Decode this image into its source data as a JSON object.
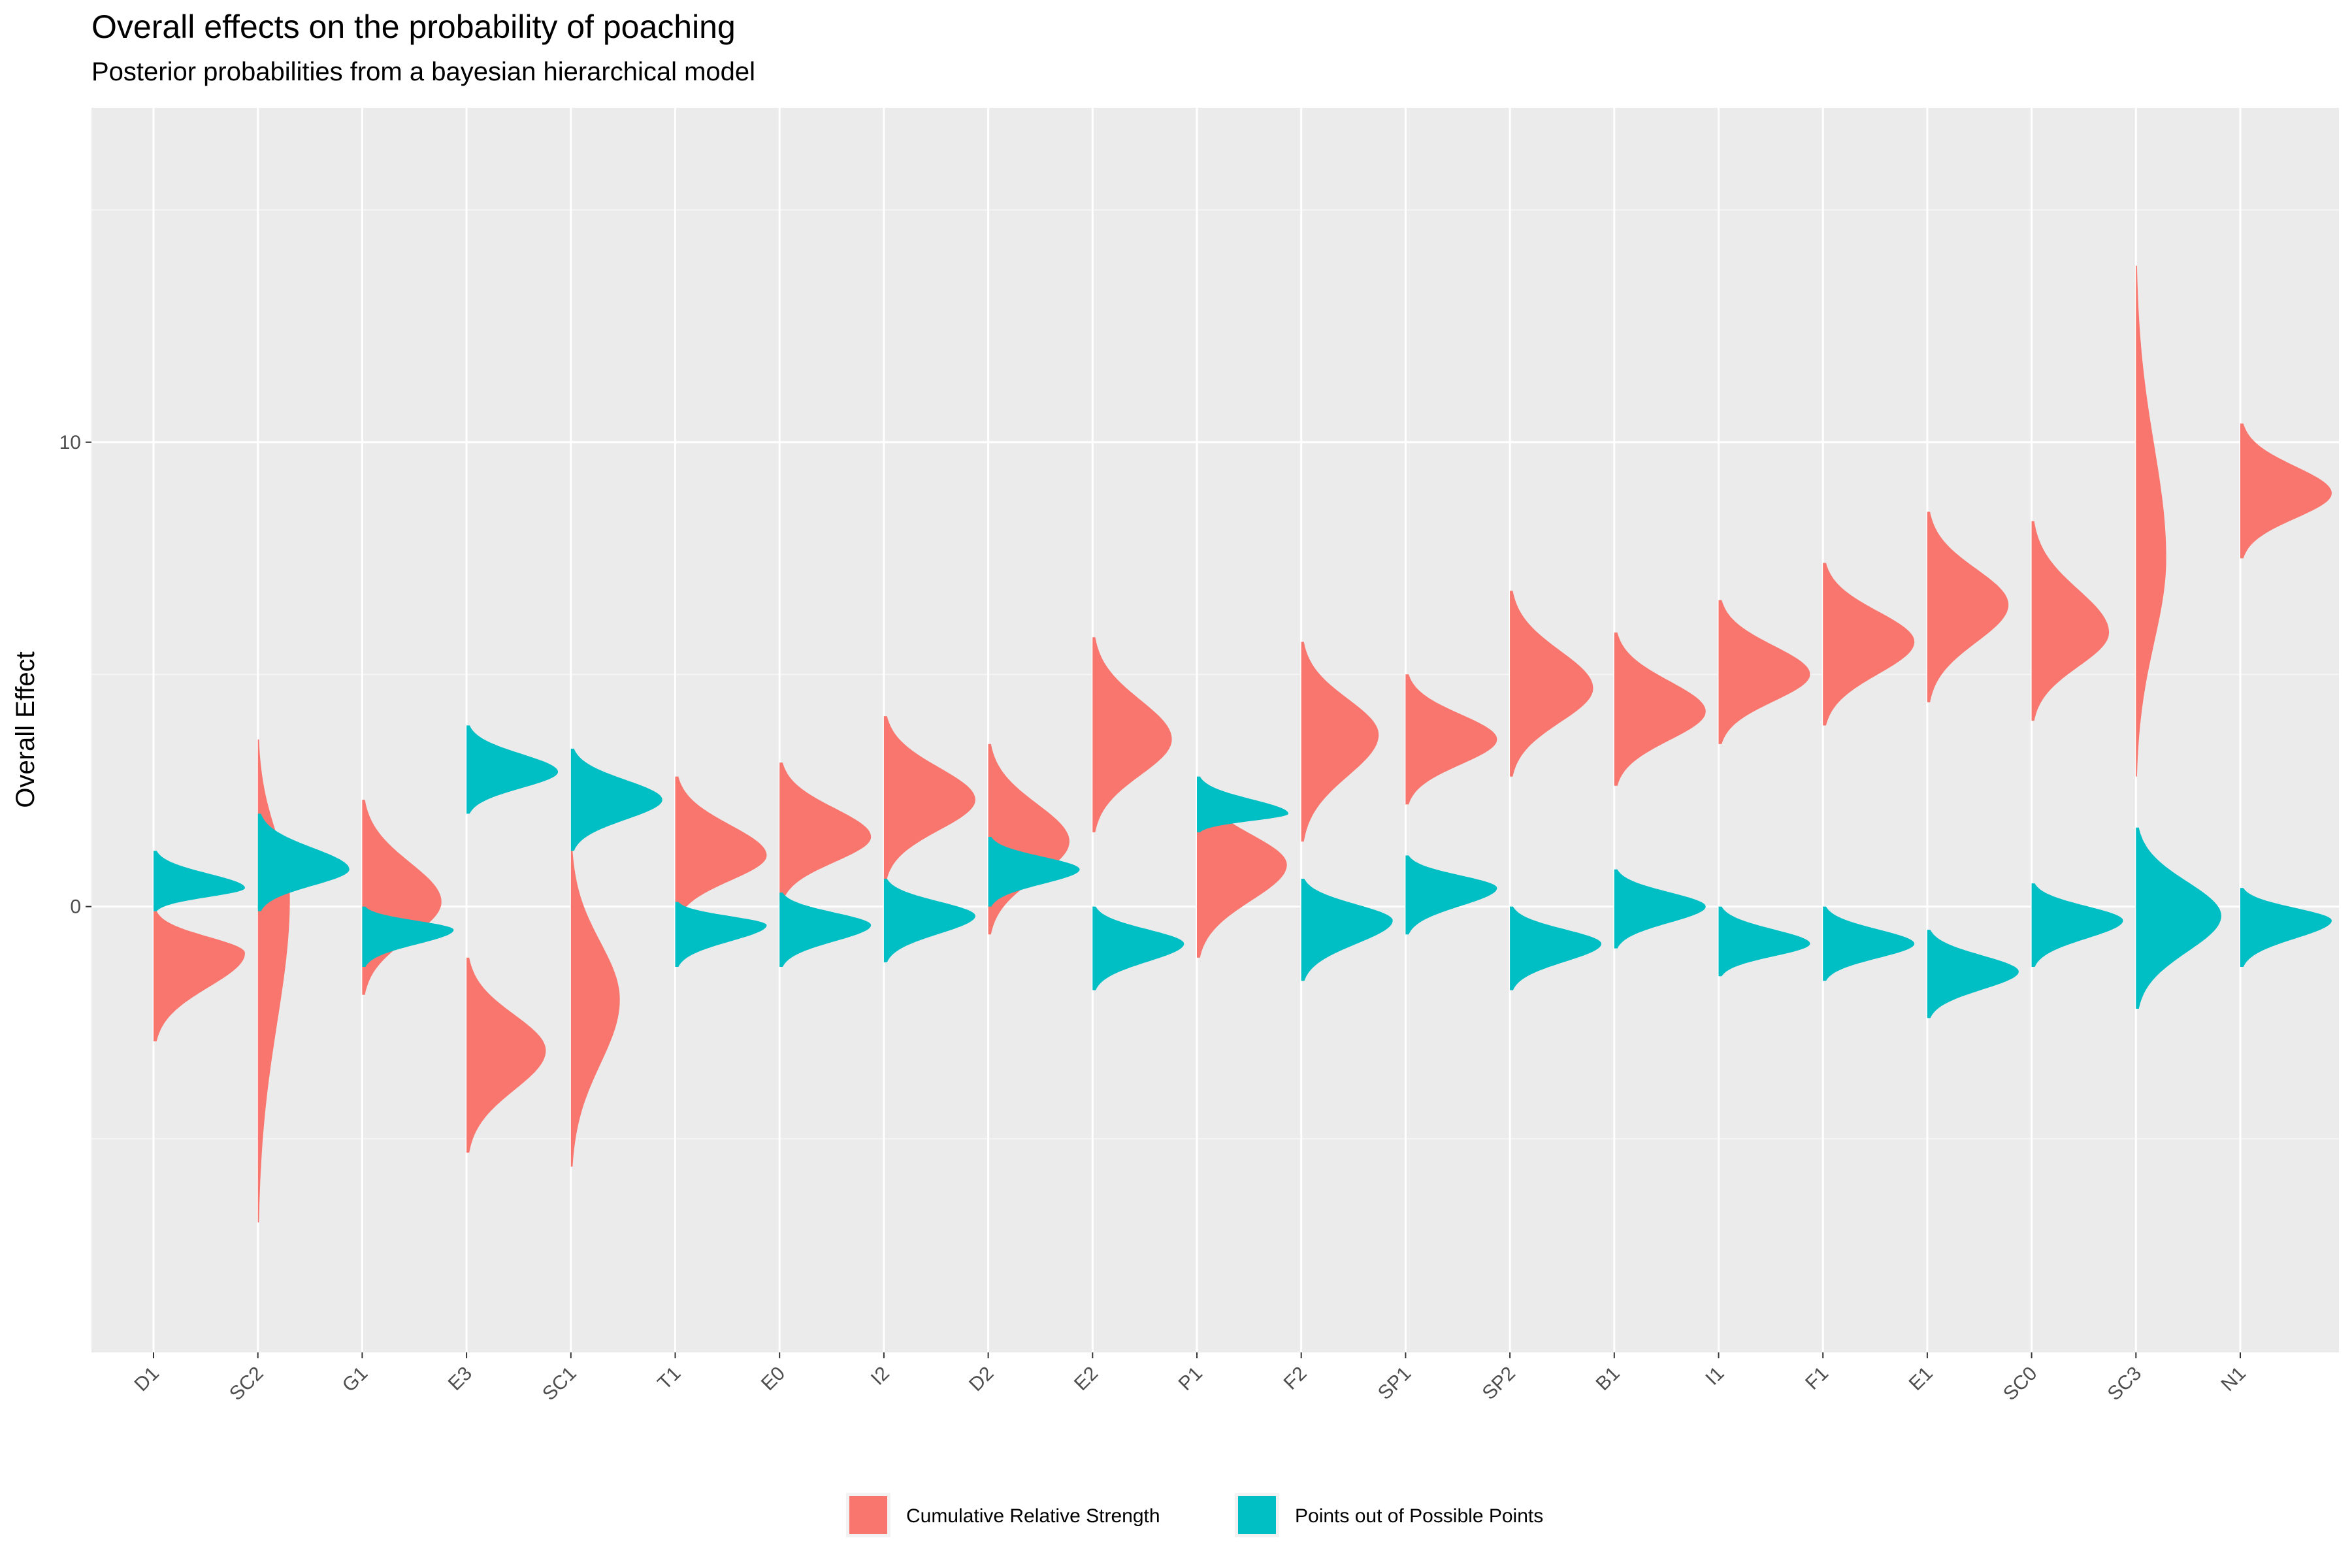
{
  "chart_data": {
    "type": "violin",
    "title": "Overall effects on the probability of poaching",
    "subtitle": "Posterior probabilities from a bayesian hierarchical model",
    "xlabel": "",
    "ylabel": "Overall Effect",
    "ylim": [
      -9.6,
      17.2
    ],
    "y_ticks": [
      0,
      10
    ],
    "grid": true,
    "legend_position": "bottom",
    "categories": [
      "D1",
      "SC2",
      "G1",
      "E3",
      "SC1",
      "T1",
      "E0",
      "I2",
      "D2",
      "E2",
      "P1",
      "F2",
      "SP1",
      "SP2",
      "B1",
      "I1",
      "F1",
      "E1",
      "SC0",
      "SC3",
      "N1"
    ],
    "series": [
      {
        "name": "Cumulative Relative Strength",
        "color": "#F8766D",
        "side": "right",
        "distributions": [
          {
            "mode": -1.0,
            "min": -2.9,
            "max": -0.1
          },
          {
            "mode": 0.2,
            "min": -6.8,
            "max": 3.6
          },
          {
            "mode": 0.1,
            "min": -1.9,
            "max": 2.3
          },
          {
            "mode": -3.1,
            "min": -5.3,
            "max": -1.1
          },
          {
            "mode": -2.0,
            "min": -5.6,
            "max": 1.2
          },
          {
            "mode": 1.1,
            "min": -0.3,
            "max": 2.8
          },
          {
            "mode": 1.5,
            "min": 0.1,
            "max": 3.1
          },
          {
            "mode": 2.3,
            "min": 0.6,
            "max": 4.1
          },
          {
            "mode": 1.4,
            "min": -0.6,
            "max": 3.5
          },
          {
            "mode": 3.6,
            "min": 1.6,
            "max": 5.8
          },
          {
            "mode": 0.9,
            "min": -1.1,
            "max": 2.6
          },
          {
            "mode": 3.7,
            "min": 1.4,
            "max": 5.7
          },
          {
            "mode": 3.6,
            "min": 2.2,
            "max": 5.0
          },
          {
            "mode": 4.7,
            "min": 2.8,
            "max": 6.8
          },
          {
            "mode": 4.2,
            "min": 2.6,
            "max": 5.9
          },
          {
            "mode": 5.0,
            "min": 3.5,
            "max": 6.6
          },
          {
            "mode": 5.7,
            "min": 3.9,
            "max": 7.4
          },
          {
            "mode": 6.5,
            "min": 4.4,
            "max": 8.5
          },
          {
            "mode": 5.9,
            "min": 4.0,
            "max": 8.3
          },
          {
            "mode": 7.5,
            "min": 2.8,
            "max": 13.8
          },
          {
            "mode": 8.9,
            "min": 7.5,
            "max": 10.4
          }
        ]
      },
      {
        "name": "Points out of Possible Points",
        "color": "#00BFC4",
        "side": "right",
        "distributions": [
          {
            "mode": 0.4,
            "min": -0.1,
            "max": 1.2
          },
          {
            "mode": 0.8,
            "min": -0.1,
            "max": 2.0
          },
          {
            "mode": -0.5,
            "min": -1.3,
            "max": 0.0
          },
          {
            "mode": 2.9,
            "min": 2.0,
            "max": 3.9
          },
          {
            "mode": 2.3,
            "min": 1.2,
            "max": 3.4
          },
          {
            "mode": -0.4,
            "min": -1.3,
            "max": 0.1
          },
          {
            "mode": -0.4,
            "min": -1.3,
            "max": 0.3
          },
          {
            "mode": -0.2,
            "min": -1.2,
            "max": 0.6
          },
          {
            "mode": 0.8,
            "min": 0.0,
            "max": 1.5
          },
          {
            "mode": -0.8,
            "min": -1.8,
            "max": 0.0
          },
          {
            "mode": 2.0,
            "min": 1.6,
            "max": 2.8
          },
          {
            "mode": -0.3,
            "min": -1.6,
            "max": 0.6
          },
          {
            "mode": 0.4,
            "min": -0.6,
            "max": 1.1
          },
          {
            "mode": -0.8,
            "min": -1.8,
            "max": 0.0
          },
          {
            "mode": 0.0,
            "min": -0.9,
            "max": 0.8
          },
          {
            "mode": -0.8,
            "min": -1.5,
            "max": 0.0
          },
          {
            "mode": -0.8,
            "min": -1.6,
            "max": 0.0
          },
          {
            "mode": -1.4,
            "min": -2.4,
            "max": -0.5
          },
          {
            "mode": -0.3,
            "min": -1.3,
            "max": 0.5
          },
          {
            "mode": -0.2,
            "min": -2.2,
            "max": 1.7
          },
          {
            "mode": -0.3,
            "min": -1.3,
            "max": 0.4
          }
        ]
      }
    ]
  }
}
